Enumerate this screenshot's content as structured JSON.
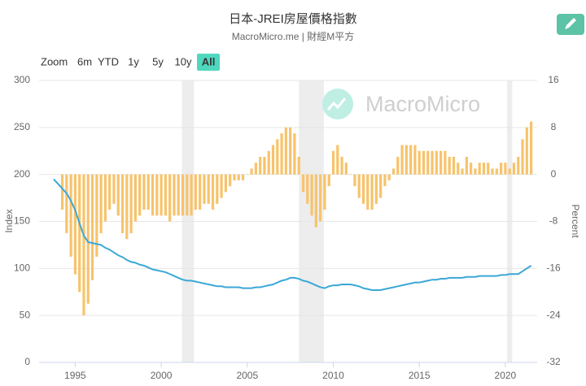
{
  "chart_data": {
    "type": "bar-line",
    "title": "日本-JREI房屋價格指數",
    "subtitle": "MacroMicro.me | 財經M平方",
    "watermark": "MacroMicro",
    "zoom": {
      "label": "Zoom",
      "options": [
        "6m",
        "YTD",
        "1y",
        "5y",
        "10y",
        "All"
      ],
      "active": 5
    },
    "ylabel": "Index",
    "y2label": "Percent",
    "xlim": [
      1992.9,
      2021.85
    ],
    "xticks": [
      1995,
      2000,
      2005,
      2010,
      2015,
      2020
    ],
    "ylim": [
      0,
      300
    ],
    "yticks": [
      0,
      50,
      100,
      150,
      200,
      250,
      300
    ],
    "y2lim": [
      -32,
      16
    ],
    "y2ticks": [
      -32,
      -24,
      -16,
      -8,
      0,
      8,
      16
    ],
    "grid": true,
    "shaded": {
      "color": "#ededed",
      "ranges": [
        [
          2001.2,
          2001.9
        ],
        [
          2008.0,
          2009.45
        ],
        [
          2020.1,
          2020.4
        ]
      ]
    },
    "x": [
      1993.75,
      1994,
      1994.25,
      1994.5,
      1994.75,
      1995,
      1995.25,
      1995.5,
      1995.75,
      1996,
      1996.25,
      1996.5,
      1996.75,
      1997,
      1997.25,
      1997.5,
      1997.75,
      1998,
      1998.25,
      1998.5,
      1998.75,
      1999,
      1999.25,
      1999.5,
      1999.75,
      2000,
      2000.25,
      2000.5,
      2000.75,
      2001,
      2001.25,
      2001.5,
      2001.75,
      2002,
      2002.25,
      2002.5,
      2002.75,
      2003,
      2003.25,
      2003.5,
      2003.75,
      2004,
      2004.25,
      2004.5,
      2004.75,
      2005,
      2005.25,
      2005.5,
      2005.75,
      2006,
      2006.25,
      2006.5,
      2006.75,
      2007,
      2007.25,
      2007.5,
      2007.75,
      2008,
      2008.25,
      2008.5,
      2008.75,
      2009,
      2009.25,
      2009.5,
      2009.75,
      2010,
      2010.25,
      2010.5,
      2010.75,
      2011,
      2011.25,
      2011.5,
      2011.75,
      2012,
      2012.25,
      2012.5,
      2012.75,
      2013,
      2013.25,
      2013.5,
      2013.75,
      2014,
      2014.25,
      2014.5,
      2014.75,
      2015,
      2015.25,
      2015.5,
      2015.75,
      2016,
      2016.25,
      2016.5,
      2016.75,
      2017,
      2017.25,
      2017.5,
      2017.75,
      2018,
      2018.25,
      2018.5,
      2018.75,
      2019,
      2019.25,
      2019.5,
      2019.75,
      2020,
      2020.25,
      2020.5,
      2020.75,
      2021,
      2021.25,
      2021.5
    ],
    "series": [
      {
        "type": "bar",
        "axis": "y2",
        "color": "#f7c36b",
        "values": [
          null,
          null,
          -6,
          -10,
          -14,
          -17,
          -20,
          -24,
          -22,
          -18,
          -14,
          -10,
          -8,
          -6,
          -5,
          -7,
          -10,
          -11,
          -10,
          -8,
          -7,
          -6,
          -6,
          -7,
          -7,
          -7,
          -7,
          -8,
          -7,
          -7,
          -7,
          -7,
          -7,
          -6,
          -6,
          -5,
          -5,
          -6,
          -5,
          -4,
          -3,
          -2,
          -1,
          -1,
          -1,
          0,
          1,
          2,
          3,
          3,
          4,
          5,
          6,
          7,
          8,
          8,
          7,
          3,
          -3,
          -5,
          -7,
          -9,
          -8,
          -6,
          -2,
          4,
          5,
          3,
          2,
          0,
          -2,
          -4,
          -5,
          -6,
          -6,
          -5,
          -4,
          -2,
          -1,
          1,
          3,
          5,
          5,
          5,
          5,
          4,
          4,
          4,
          4,
          4,
          4,
          4,
          3,
          3,
          2,
          1,
          3,
          2,
          1,
          2,
          2,
          2,
          1,
          1,
          2,
          2,
          1,
          2,
          3,
          6,
          8,
          9
        ]
      },
      {
        "type": "line",
        "color": "#3aa8d6",
        "values": [
          195,
          190,
          185,
          180,
          172,
          162,
          148,
          135,
          128,
          127,
          126,
          125,
          122,
          120,
          117,
          114,
          112,
          109,
          107,
          106,
          104,
          103,
          101,
          99,
          98,
          97,
          96,
          94,
          92,
          90,
          88,
          87,
          87,
          86,
          85,
          84,
          83,
          82,
          81,
          81,
          80,
          80,
          80,
          80,
          79,
          79,
          79,
          80,
          80,
          81,
          82,
          83,
          85,
          87,
          88,
          90,
          90,
          89,
          87,
          86,
          84,
          82,
          80,
          79,
          81,
          82,
          82,
          83,
          83,
          83,
          82,
          81,
          79,
          78,
          77,
          77,
          77,
          78,
          79,
          80,
          81,
          82,
          83,
          84,
          85,
          85,
          86,
          87,
          88,
          88,
          89,
          89,
          90,
          90,
          90,
          90,
          91,
          91,
          91,
          92,
          92,
          92,
          92,
          92,
          93,
          93,
          94,
          94,
          94,
          97,
          100,
          103
        ]
      }
    ]
  }
}
